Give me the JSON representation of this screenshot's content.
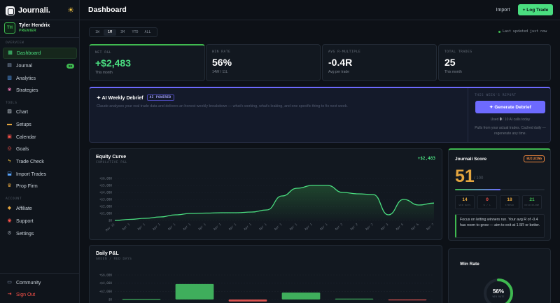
{
  "app": {
    "name": "Journali."
  },
  "user": {
    "initials": "TH",
    "name": "Tyler Hendrix",
    "plan": "PREMIER"
  },
  "sidebar": {
    "sections": {
      "overview": "OVERVIEW",
      "tools": "TOOLS",
      "account": "ACCOUNT"
    },
    "overview_items": [
      {
        "label": "Dashboard",
        "icon": "grid-icon"
      },
      {
        "label": "Journal",
        "icon": "book-icon",
        "badge": "99"
      },
      {
        "label": "Analytics",
        "icon": "bar-chart-icon"
      },
      {
        "label": "Strategies",
        "icon": "brain-icon"
      }
    ],
    "tools_items": [
      {
        "label": "Chart",
        "icon": "chart-icon"
      },
      {
        "label": "Setups",
        "icon": "ticket-icon"
      },
      {
        "label": "Calendar",
        "icon": "calendar-icon"
      },
      {
        "label": "Goals",
        "icon": "target-icon"
      },
      {
        "label": "Trade Check",
        "icon": "bolt-icon"
      },
      {
        "label": "Import Trades",
        "icon": "inbox-icon"
      },
      {
        "label": "Prop Firm",
        "icon": "trophy-icon"
      }
    ],
    "account_items": [
      {
        "label": "Affiliate",
        "icon": "handshake-icon"
      },
      {
        "label": "Support",
        "icon": "lifebuoy-icon"
      },
      {
        "label": "Settings",
        "icon": "gear-icon"
      }
    ],
    "footer_items": [
      {
        "label": "Community",
        "icon": "chat-icon"
      },
      {
        "label": "Sign Out",
        "icon": "exit-icon"
      }
    ]
  },
  "header": {
    "title": "Dashboard",
    "import_label": "Import",
    "log_trade_label": "+ Log Trade"
  },
  "range": {
    "tabs": [
      "1W",
      "1M",
      "3M",
      "YTD",
      "ALL"
    ],
    "selected": "1M",
    "updated": "Last updated just now"
  },
  "stats": [
    {
      "label": "NET P&L",
      "value": "+$2,483",
      "sub": "This month"
    },
    {
      "label": "WIN RATE",
      "value": "56%",
      "sub": "14W / 11L"
    },
    {
      "label": "AVG R-MULTIPLE",
      "value": "-0.4R",
      "sub": "Avg per trade"
    },
    {
      "label": "TOTAL TRADES",
      "value": "25",
      "sub": "This month"
    }
  ],
  "debrief": {
    "title": "✦ AI Weekly Debrief",
    "badge": "AI POWERED",
    "description": "Claude analyses your real trade data and delivers an honest weekly breakdown — what's working, what's leaking, and one specific thing to fix next week.",
    "report_label": "THIS WEEK'S REPORT",
    "button_label": "✦  Generate Debrief",
    "used_prefix": "Used",
    "used_count": "0",
    "used_suffix": "/ 10 AI calls today",
    "note": "Pulls from your actual trades. Cached daily — regenerate any time."
  },
  "equity": {
    "title": "Equity Curve",
    "subtitle": "CUMULATIVE P&L",
    "total": "+$2,483"
  },
  "daily": {
    "title": "Daily P&L",
    "subtitle": "GREEN / RED DAYS"
  },
  "score": {
    "title": "Journali Score",
    "badge": "BUILDING",
    "value": "51",
    "max": "/ 100",
    "progress": 0.51,
    "subs": [
      {
        "value": "14",
        "label": "WIN DAYS",
        "color": "#e3a53f"
      },
      {
        "value": "0",
        "label": "W / L",
        "color": "#f85149"
      },
      {
        "value": "18",
        "label": "STREAK",
        "color": "#e3a53f"
      },
      {
        "value": "21",
        "label": "DISCIPLINE",
        "color": "#3fb950"
      }
    ],
    "tip": "Focus on letting winners run. Your avg R of -0.4 has room to grow — aim to exit at 1.5R or better."
  },
  "winrate": {
    "title": "Win Rate",
    "value": "56%",
    "label": "WIN RATE",
    "fraction": 0.56
  },
  "colors": {
    "accent": "#4ade80",
    "purple": "#6d6aff",
    "red": "#f85149",
    "amber": "#e3a53f"
  },
  "chart_data": [
    {
      "type": "area",
      "title": "Equity Curve",
      "subtitle": "CUMULATIVE P&L",
      "y_ticks": [
        "+$6,000",
        "+$5,000",
        "+$4,000",
        "+$3,000",
        "+$2,000",
        "+$1,000",
        "$0"
      ],
      "ylim": [
        0,
        6000
      ],
      "x": [
        "Mar 31",
        "Apr 1",
        "Apr 1",
        "Apr 1",
        "Apr 1",
        "Apr 1",
        "Apr 1",
        "Apr 1",
        "Apr 1",
        "Apr 1",
        "Apr 1",
        "Apr 1",
        "Apr 1",
        "Apr 1",
        "Apr 1",
        "Apr 2",
        "Apr 2",
        "Apr 2",
        "Apr 3",
        "Apr 5",
        "Apr 6",
        "Apr 7"
      ],
      "values": [
        0,
        150,
        300,
        500,
        800,
        1000,
        1050,
        1100,
        1100,
        1200,
        1500,
        3500,
        4600,
        5000,
        5000,
        4000,
        3800,
        3700,
        800,
        3000,
        2200,
        2483
      ],
      "grid": true
    },
    {
      "type": "bar",
      "title": "Daily P&L",
      "subtitle": "GREEN / RED DAYS",
      "y_ticks": [
        "+$6,000",
        "+$4,000",
        "+$2,000",
        "$0"
      ],
      "ylim": [
        0,
        6000
      ],
      "values": [
        150,
        3800,
        -500,
        1700,
        0,
        -200
      ],
      "grid": true
    }
  ]
}
